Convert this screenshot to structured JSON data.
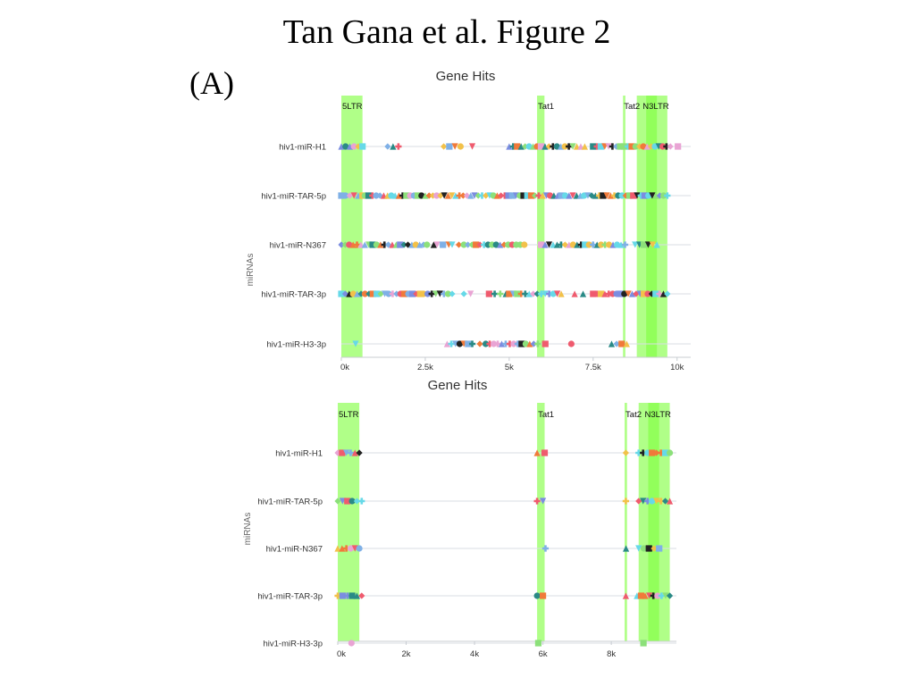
{
  "slide": {
    "title": "Tan Gana et al. Figure 2",
    "panel_label": "(A)"
  },
  "chart_data": [
    {
      "type": "scatter",
      "title": "Gene Hits",
      "ylabel": "miRNAs",
      "xlabel": "",
      "xlim": [
        0,
        10300
      ],
      "x_ticks": [
        0,
        2500,
        5000,
        7500,
        10000
      ],
      "x_tick_labels": [
        "0k",
        "2.5k",
        "5k",
        "7.5k",
        "10k"
      ],
      "categories": [
        "hiv1-miR-H1",
        "hiv1-miR-TAR-5p",
        "hiv1-miR-N367",
        "hiv1-miR-TAR-3p",
        "hiv1-miR-H3-3p"
      ],
      "regions": [
        {
          "name": "5LTR",
          "start": 0,
          "end": 630
        },
        {
          "name": "Tat1",
          "start": 5830,
          "end": 6050
        },
        {
          "name": "Tat2",
          "start": 8390,
          "end": 8460
        },
        {
          "name": "Nef",
          "start": 8800,
          "end": 9400
        },
        {
          "name": "3LTR",
          "start": 9080,
          "end": 9710
        }
      ],
      "region_label_text": [
        "5LTR",
        "Tat1",
        "Tat2",
        "N3LTR"
      ],
      "region_label_x": [
        0,
        5830,
        8390,
        8950
      ],
      "hit_ranges": [
        [
          [
            0,
            630
          ],
          [
            1380,
            1700
          ],
          [
            3050,
            3550
          ],
          [
            3850,
            3950
          ],
          [
            5000,
            7250
          ],
          [
            7500,
            9800
          ],
          [
            10000,
            10050
          ]
        ],
        [
          [
            0,
            630
          ],
          [
            700,
            9710
          ]
        ],
        [
          [
            0,
            2450
          ],
          [
            2550,
            2750
          ],
          [
            2850,
            3200
          ],
          [
            3300,
            3500
          ],
          [
            3650,
            5450
          ],
          [
            5950,
            8450
          ],
          [
            8750,
            9400
          ]
        ],
        [
          [
            0,
            2350
          ],
          [
            2450,
            3300
          ],
          [
            3650,
            3850
          ],
          [
            4400,
            4900
          ],
          [
            5000,
            6550
          ],
          [
            6950,
            7200
          ],
          [
            7500,
            9710
          ]
        ],
        [
          [
            350,
            500
          ],
          [
            3150,
            3900
          ],
          [
            4050,
            4200
          ],
          [
            4300,
            5850
          ],
          [
            6000,
            6150
          ],
          [
            6800,
            6900
          ],
          [
            8050,
            8500
          ]
        ]
      ],
      "grid": true,
      "legend": "none"
    },
    {
      "type": "scatter",
      "title": "Gene Hits",
      "ylabel": "miRNAs",
      "xlabel": "",
      "xlim": [
        0,
        9800
      ],
      "x_ticks": [
        0,
        2000,
        4000,
        6000,
        8000
      ],
      "x_tick_labels": [
        "0k",
        "2k",
        "4k",
        "6k",
        "8k"
      ],
      "categories": [
        "hiv1-miR-H1",
        "hiv1-miR-TAR-5p",
        "hiv1-miR-N367",
        "hiv1-miR-TAR-3p",
        "hiv1-miR-H3-3p"
      ],
      "regions": [
        {
          "name": "5LTR",
          "start": 0,
          "end": 630
        },
        {
          "name": "Tat1",
          "start": 5830,
          "end": 6050
        },
        {
          "name": "Tat2",
          "start": 8390,
          "end": 8460
        },
        {
          "name": "Nef",
          "start": 8800,
          "end": 9400
        },
        {
          "name": "3LTR",
          "start": 9080,
          "end": 9710
        }
      ],
      "region_label_text": [
        "5LTR",
        "Tat1",
        "Tat2",
        "N3LTR"
      ],
      "region_label_x": [
        0,
        5830,
        8390,
        8950
      ],
      "hit_ranges": [
        [
          [
            0,
            630
          ],
          [
            5830,
            6050
          ],
          [
            8350,
            8500
          ],
          [
            8800,
            9710
          ]
        ],
        [
          [
            0,
            700
          ],
          [
            5830,
            6000
          ],
          [
            8350,
            8500
          ],
          [
            8800,
            9710
          ]
        ],
        [
          [
            0,
            630
          ],
          [
            6050,
            6100
          ],
          [
            8400,
            8460
          ],
          [
            8800,
            9400
          ]
        ],
        [
          [
            0,
            700
          ],
          [
            5830,
            6000
          ],
          [
            8350,
            8500
          ],
          [
            8750,
            9710
          ]
        ],
        [
          [
            330,
            470
          ],
          [
            5830,
            5900
          ],
          [
            8900,
            8980
          ]
        ]
      ],
      "grid": true,
      "legend": "none"
    }
  ],
  "colors": {
    "region": "#7fff3f",
    "region_dense": "#66ff22",
    "grid": "#d9dde3",
    "markers": [
      "#7fb0e6",
      "#ef5b6e",
      "#2a8a86",
      "#8ce07a",
      "#f2c14a",
      "#7b8de0",
      "#222222",
      "#66d9e8",
      "#e9a4d4",
      "#f07a3a"
    ]
  }
}
